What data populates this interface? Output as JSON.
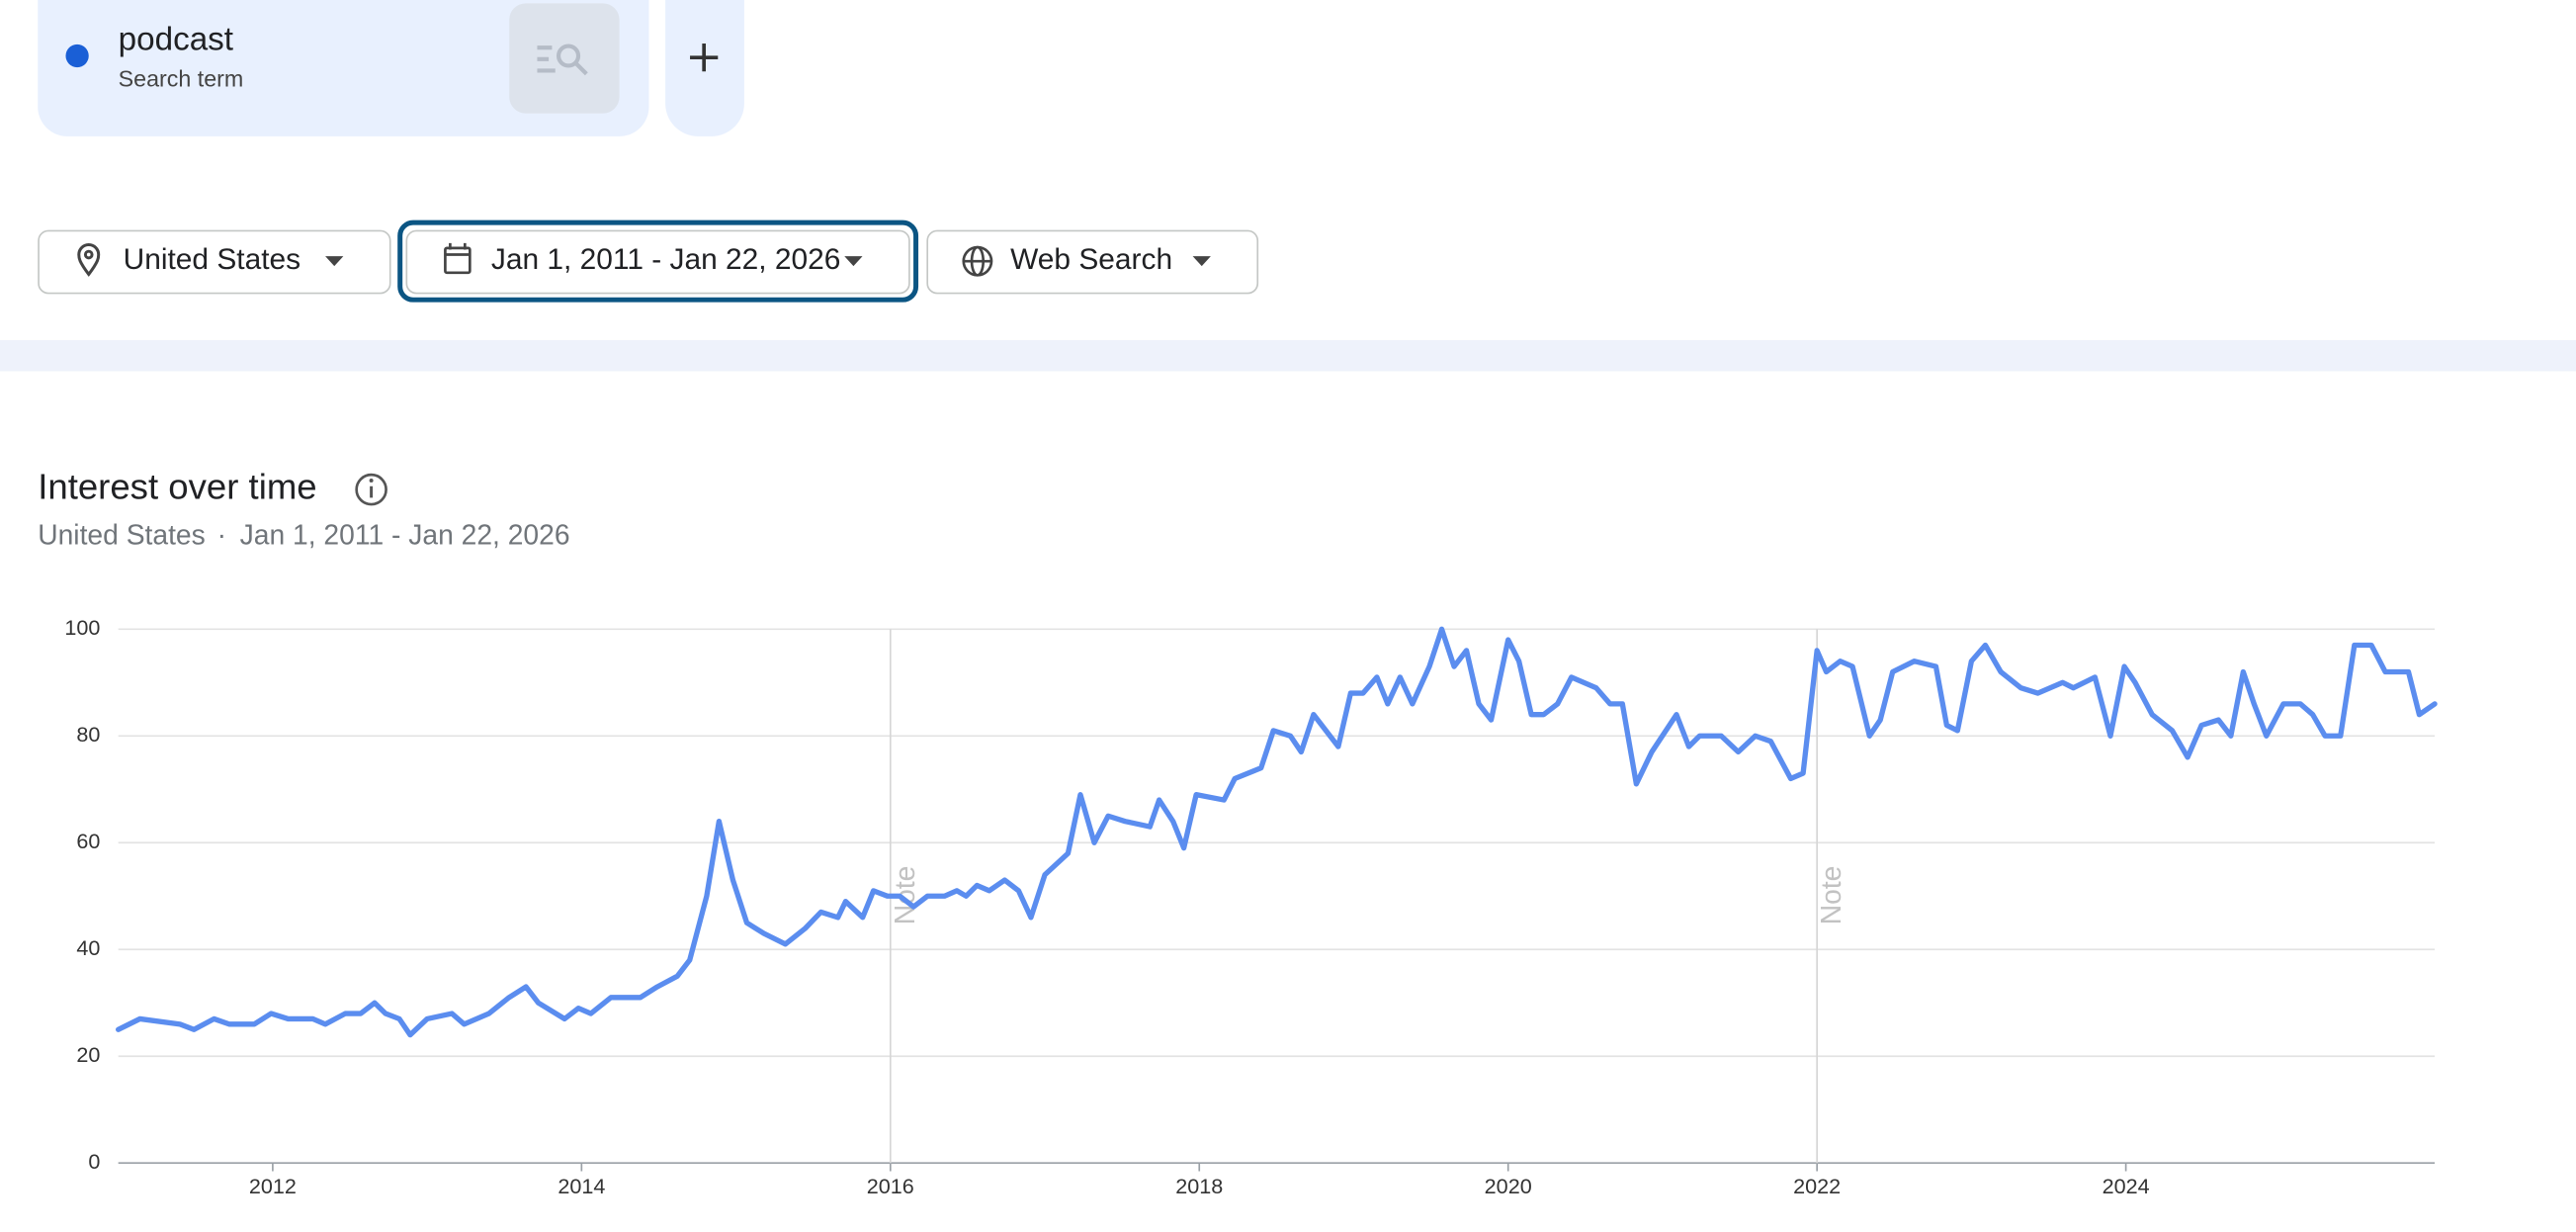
{
  "search": {
    "term": "podcast",
    "term_kind": "Search term"
  },
  "filters": {
    "location": "United States",
    "date_range": "Jan 1, 2011 - Jan 22, 2026",
    "property": "Web Search"
  },
  "section": {
    "title": "Interest over time",
    "subtitle_location": "United States",
    "subtitle_separator": "·",
    "subtitle_range": "Jan 1, 2011 - Jan 22, 2026"
  },
  "chart_data": {
    "type": "line",
    "x": [
      2011.0,
      2011.14,
      2011.4,
      2011.49,
      2011.62,
      2011.72,
      2011.88,
      2011.99,
      2012.1,
      2012.26,
      2012.34,
      2012.47,
      2012.57,
      2012.66,
      2012.73,
      2012.82,
      2012.89,
      2013.0,
      2013.16,
      2013.24,
      2013.4,
      2013.53,
      2013.64,
      2013.72,
      2013.89,
      2013.98,
      2014.06,
      2014.19,
      2014.38,
      2014.49,
      2014.62,
      2014.7,
      2014.81,
      2014.89,
      2014.98,
      2015.07,
      2015.18,
      2015.32,
      2015.45,
      2015.55,
      2015.66,
      2015.71,
      2015.82,
      2015.89,
      2015.98,
      2016.06,
      2016.15,
      2016.24,
      2016.35,
      2016.43,
      2016.49,
      2016.56,
      2016.64,
      2016.74,
      2016.83,
      2016.91,
      2017.0,
      2017.15,
      2017.23,
      2017.32,
      2017.41,
      2017.52,
      2017.68,
      2017.74,
      2017.83,
      2017.9,
      2017.98,
      2018.16,
      2018.23,
      2018.4,
      2018.48,
      2018.59,
      2018.66,
      2018.74,
      2018.9,
      2018.98,
      2019.06,
      2019.15,
      2019.22,
      2019.3,
      2019.38,
      2019.49,
      2019.57,
      2019.65,
      2019.73,
      2019.81,
      2019.89,
      2020.0,
      2020.07,
      2020.15,
      2020.23,
      2020.32,
      2020.41,
      2020.57,
      2020.66,
      2020.74,
      2020.83,
      2020.93,
      2021.09,
      2021.17,
      2021.24,
      2021.38,
      2021.49,
      2021.6,
      2021.7,
      2021.83,
      2021.91,
      2022.0,
      2022.06,
      2022.15,
      2022.23,
      2022.34,
      2022.41,
      2022.49,
      2022.63,
      2022.77,
      2022.84,
      2022.91,
      2023.0,
      2023.09,
      2023.19,
      2023.32,
      2023.43,
      2023.59,
      2023.66,
      2023.8,
      2023.9,
      2023.99,
      2024.06,
      2024.17,
      2024.3,
      2024.4,
      2024.49,
      2024.6,
      2024.68,
      2024.76,
      2024.83,
      2024.91,
      2025.02,
      2025.13,
      2025.21,
      2025.29,
      2025.39,
      2025.48,
      2025.59,
      2025.68,
      2025.83,
      2025.9,
      2026.0
    ],
    "series": [
      {
        "name": "podcast",
        "color": "#5b8def",
        "values": [
          25,
          27,
          26,
          25,
          27,
          26,
          26,
          28,
          27,
          27,
          26,
          28,
          28,
          30,
          28,
          27,
          24,
          27,
          28,
          26,
          28,
          31,
          33,
          30,
          27,
          29,
          28,
          31,
          31,
          33,
          35,
          38,
          50,
          64,
          53,
          45,
          43,
          41,
          44,
          47,
          46,
          49,
          46,
          51,
          50,
          50,
          48,
          50,
          50,
          51,
          50,
          52,
          51,
          53,
          51,
          46,
          54,
          58,
          69,
          60,
          65,
          64,
          63,
          68,
          64,
          59,
          69,
          68,
          72,
          74,
          81,
          80,
          77,
          84,
          78,
          88,
          88,
          91,
          86,
          91,
          86,
          93,
          100,
          93,
          96,
          86,
          83,
          98,
          94,
          84,
          84,
          86,
          91,
          89,
          86,
          86,
          71,
          77,
          84,
          78,
          80,
          80,
          77,
          80,
          79,
          72,
          73,
          96,
          92,
          94,
          93,
          80,
          83,
          92,
          94,
          93,
          82,
          81,
          94,
          97,
          92,
          89,
          88,
          90,
          89,
          91,
          80,
          93,
          90,
          84,
          81,
          76,
          82,
          83,
          80,
          92,
          86,
          80,
          86,
          86,
          84,
          80,
          80,
          97,
          97,
          92,
          92,
          84,
          86
        ]
      }
    ],
    "xlim": [
      2011,
      2026
    ],
    "xticks": [
      2012,
      2014,
      2016,
      2018,
      2020,
      2022,
      2024
    ],
    "ylim": [
      0,
      100
    ],
    "yticks": [
      0,
      20,
      40,
      60,
      80,
      100
    ],
    "grid": true,
    "annotations": [
      {
        "x": 2016,
        "label": "Note"
      },
      {
        "x": 2022,
        "label": "Note"
      }
    ]
  }
}
